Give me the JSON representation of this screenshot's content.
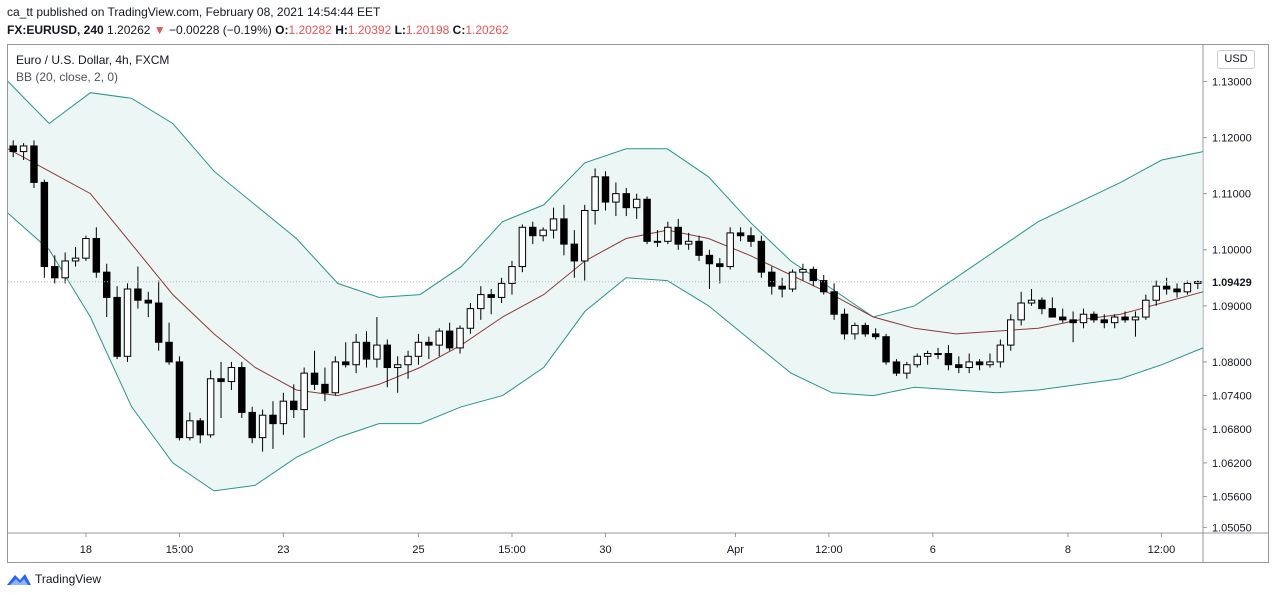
{
  "header": {
    "published": "ca_tt published on TradingView.com, February 08, 2021 14:54:44 EET",
    "symbol": "FX:EURUSD, 240",
    "price": "1.20262",
    "change": "−0.00228 (−0.19%)",
    "o_label": "O:",
    "o_value": "1.20282",
    "h_label": "H:",
    "h_value": "1.20392",
    "l_label": "L:",
    "l_value": "1.20198",
    "c_label": "C:",
    "c_value": "1.20262"
  },
  "legend": {
    "series_title": "Euro / U.S. Dollar, 4h, FXCM",
    "indicator": "BB (20, close, 2, 0)"
  },
  "currency_button": "USD",
  "branding": "TradingView",
  "colors": {
    "up": "#ffffff",
    "down": "#000000",
    "outline": "#000000",
    "band": "#26958c",
    "basis": "#8b3a3a",
    "fill": "#e0f2ef",
    "grid": "#9598a1"
  },
  "chart_data": {
    "type": "candlestick",
    "title": "Euro / U.S. Dollar, 4h, FXCM",
    "indicator": "Bollinger Bands (20, close, 2, 0)",
    "ylim": [
      1.0495,
      1.1365
    ],
    "y_ticks": [
      "1.13000",
      "1.12000",
      "1.11000",
      "1.10000",
      "1.09000",
      "1.08000",
      "1.07400",
      "1.06800",
      "1.06200",
      "1.05600",
      "1.05050"
    ],
    "last_price_label": "1.09429",
    "last_price": 1.09429,
    "x_tick_labels": [
      {
        "label": "18",
        "bar": 7.5
      },
      {
        "label": "15:00",
        "bar": 16.5
      },
      {
        "label": "23",
        "bar": 26.5
      },
      {
        "label": "25",
        "bar": 39.5
      },
      {
        "label": "15:00",
        "bar": 48.5
      },
      {
        "label": "30",
        "bar": 57.5
      },
      {
        "label": "Apr",
        "bar": 70
      },
      {
        "label": "12:00",
        "bar": 79
      },
      {
        "label": "6",
        "bar": 89
      },
      {
        "label": "8",
        "bar": 102
      },
      {
        "label": "12:00",
        "bar": 111
      }
    ],
    "candles": [
      {
        "o": 1.1185,
        "h": 1.1195,
        "l": 1.1165,
        "c": 1.1175
      },
      {
        "o": 1.1175,
        "h": 1.119,
        "l": 1.116,
        "c": 1.1185
      },
      {
        "o": 1.1185,
        "h": 1.1195,
        "l": 1.111,
        "c": 1.112
      },
      {
        "o": 1.112,
        "h": 1.1125,
        "l": 1.095,
        "c": 1.097
      },
      {
        "o": 1.097,
        "h": 1.099,
        "l": 1.094,
        "c": 1.095
      },
      {
        "o": 1.095,
        "h": 1.0995,
        "l": 1.094,
        "c": 1.098
      },
      {
        "o": 1.098,
        "h": 1.1005,
        "l": 1.097,
        "c": 1.0985
      },
      {
        "o": 1.0985,
        "h": 1.1025,
        "l": 1.098,
        "c": 1.102
      },
      {
        "o": 1.102,
        "h": 1.104,
        "l": 1.095,
        "c": 1.096
      },
      {
        "o": 1.096,
        "h": 1.0975,
        "l": 1.088,
        "c": 1.0915
      },
      {
        "o": 1.0915,
        "h": 1.0935,
        "l": 1.0805,
        "c": 1.081
      },
      {
        "o": 1.081,
        "h": 1.094,
        "l": 1.08,
        "c": 1.093
      },
      {
        "o": 1.093,
        "h": 1.097,
        "l": 1.0895,
        "c": 1.091
      },
      {
        "o": 1.091,
        "h": 1.0925,
        "l": 1.088,
        "c": 1.0905
      },
      {
        "o": 1.0905,
        "h": 1.0945,
        "l": 1.082,
        "c": 1.0835
      },
      {
        "o": 1.0835,
        "h": 1.087,
        "l": 1.0795,
        "c": 1.08
      },
      {
        "o": 1.08,
        "h": 1.081,
        "l": 1.066,
        "c": 1.0665
      },
      {
        "o": 1.0665,
        "h": 1.071,
        "l": 1.066,
        "c": 1.0695
      },
      {
        "o": 1.0695,
        "h": 1.07,
        "l": 1.0655,
        "c": 1.067
      },
      {
        "o": 1.067,
        "h": 1.0785,
        "l": 1.0665,
        "c": 1.077
      },
      {
        "o": 1.077,
        "h": 1.08,
        "l": 1.07,
        "c": 1.0765
      },
      {
        "o": 1.0765,
        "h": 1.08,
        "l": 1.075,
        "c": 1.079
      },
      {
        "o": 1.079,
        "h": 1.08,
        "l": 1.07,
        "c": 1.071
      },
      {
        "o": 1.071,
        "h": 1.072,
        "l": 1.0655,
        "c": 1.0665
      },
      {
        "o": 1.0665,
        "h": 1.0715,
        "l": 1.064,
        "c": 1.0705
      },
      {
        "o": 1.0705,
        "h": 1.073,
        "l": 1.0645,
        "c": 1.069
      },
      {
        "o": 1.069,
        "h": 1.0745,
        "l": 1.067,
        "c": 1.073
      },
      {
        "o": 1.073,
        "h": 1.076,
        "l": 1.07,
        "c": 1.0715
      },
      {
        "o": 1.0715,
        "h": 1.079,
        "l": 1.0665,
        "c": 1.078
      },
      {
        "o": 1.078,
        "h": 1.082,
        "l": 1.075,
        "c": 1.076
      },
      {
        "o": 1.076,
        "h": 1.079,
        "l": 1.073,
        "c": 1.0745
      },
      {
        "o": 1.0745,
        "h": 1.081,
        "l": 1.074,
        "c": 1.08
      },
      {
        "o": 1.08,
        "h": 1.0835,
        "l": 1.079,
        "c": 1.0795
      },
      {
        "o": 1.0795,
        "h": 1.085,
        "l": 1.078,
        "c": 1.0835
      },
      {
        "o": 1.0835,
        "h": 1.0855,
        "l": 1.079,
        "c": 1.0805
      },
      {
        "o": 1.0805,
        "h": 1.088,
        "l": 1.079,
        "c": 1.083
      },
      {
        "o": 1.083,
        "h": 1.084,
        "l": 1.0755,
        "c": 1.079
      },
      {
        "o": 1.079,
        "h": 1.081,
        "l": 1.0745,
        "c": 1.0795
      },
      {
        "o": 1.0795,
        "h": 1.082,
        "l": 1.077,
        "c": 1.081
      },
      {
        "o": 1.081,
        "h": 1.085,
        "l": 1.0795,
        "c": 1.0835
      },
      {
        "o": 1.0835,
        "h": 1.0845,
        "l": 1.0805,
        "c": 1.083
      },
      {
        "o": 1.083,
        "h": 1.086,
        "l": 1.081,
        "c": 1.0855
      },
      {
        "o": 1.0855,
        "h": 1.087,
        "l": 1.082,
        "c": 1.0825
      },
      {
        "o": 1.0825,
        "h": 1.0865,
        "l": 1.0815,
        "c": 1.086
      },
      {
        "o": 1.086,
        "h": 1.0905,
        "l": 1.085,
        "c": 1.0895
      },
      {
        "o": 1.0895,
        "h": 1.0935,
        "l": 1.0875,
        "c": 1.092
      },
      {
        "o": 1.092,
        "h": 1.093,
        "l": 1.0885,
        "c": 1.0915
      },
      {
        "o": 1.0915,
        "h": 1.095,
        "l": 1.0905,
        "c": 1.094
      },
      {
        "o": 1.094,
        "h": 1.098,
        "l": 1.092,
        "c": 1.097
      },
      {
        "o": 1.097,
        "h": 1.1045,
        "l": 1.096,
        "c": 1.104
      },
      {
        "o": 1.104,
        "h": 1.105,
        "l": 1.101,
        "c": 1.1025
      },
      {
        "o": 1.1025,
        "h": 1.104,
        "l": 1.1015,
        "c": 1.1035
      },
      {
        "o": 1.1035,
        "h": 1.1075,
        "l": 1.102,
        "c": 1.1055
      },
      {
        "o": 1.1055,
        "h": 1.108,
        "l": 1.099,
        "c": 1.101
      },
      {
        "o": 1.101,
        "h": 1.1035,
        "l": 1.095,
        "c": 1.098
      },
      {
        "o": 1.098,
        "h": 1.108,
        "l": 1.0945,
        "c": 1.107
      },
      {
        "o": 1.107,
        "h": 1.1145,
        "l": 1.1045,
        "c": 1.113
      },
      {
        "o": 1.113,
        "h": 1.114,
        "l": 1.107,
        "c": 1.1085
      },
      {
        "o": 1.1085,
        "h": 1.112,
        "l": 1.106,
        "c": 1.11
      },
      {
        "o": 1.11,
        "h": 1.111,
        "l": 1.106,
        "c": 1.1075
      },
      {
        "o": 1.1075,
        "h": 1.11,
        "l": 1.1055,
        "c": 1.109
      },
      {
        "o": 1.109,
        "h": 1.1095,
        "l": 1.101,
        "c": 1.1015
      },
      {
        "o": 1.1015,
        "h": 1.1035,
        "l": 1.1005,
        "c": 1.1015
      },
      {
        "o": 1.1015,
        "h": 1.105,
        "l": 1.101,
        "c": 1.104
      },
      {
        "o": 1.104,
        "h": 1.1055,
        "l": 1.1,
        "c": 1.101
      },
      {
        "o": 1.101,
        "h": 1.103,
        "l": 1.1,
        "c": 1.1015
      },
      {
        "o": 1.1015,
        "h": 1.1025,
        "l": 1.098,
        "c": 1.099
      },
      {
        "o": 1.099,
        "h": 1.1,
        "l": 1.093,
        "c": 1.0975
      },
      {
        "o": 1.0975,
        "h": 1.0985,
        "l": 1.094,
        "c": 1.097
      },
      {
        "o": 1.097,
        "h": 1.104,
        "l": 1.0965,
        "c": 1.103
      },
      {
        "o": 1.103,
        "h": 1.104,
        "l": 1.1015,
        "c": 1.1025
      },
      {
        "o": 1.1025,
        "h": 1.104,
        "l": 1.1005,
        "c": 1.1015
      },
      {
        "o": 1.1015,
        "h": 1.1025,
        "l": 1.095,
        "c": 1.096
      },
      {
        "o": 1.096,
        "h": 1.097,
        "l": 1.092,
        "c": 1.0935
      },
      {
        "o": 1.0935,
        "h": 1.095,
        "l": 1.0915,
        "c": 1.093
      },
      {
        "o": 1.093,
        "h": 1.0965,
        "l": 1.0925,
        "c": 1.096
      },
      {
        "o": 1.096,
        "h": 1.0975,
        "l": 1.0945,
        "c": 1.0965
      },
      {
        "o": 1.0965,
        "h": 1.097,
        "l": 1.0935,
        "c": 1.0945
      },
      {
        "o": 1.0945,
        "h": 1.0955,
        "l": 1.092,
        "c": 1.0925
      },
      {
        "o": 1.0925,
        "h": 1.094,
        "l": 1.0875,
        "c": 1.0885
      },
      {
        "o": 1.0885,
        "h": 1.0895,
        "l": 1.084,
        "c": 1.085
      },
      {
        "o": 1.085,
        "h": 1.087,
        "l": 1.084,
        "c": 1.0865
      },
      {
        "o": 1.0865,
        "h": 1.087,
        "l": 1.0845,
        "c": 1.085
      },
      {
        "o": 1.085,
        "h": 1.086,
        "l": 1.084,
        "c": 1.0845
      },
      {
        "o": 1.0845,
        "h": 1.085,
        "l": 1.0795,
        "c": 1.08
      },
      {
        "o": 1.08,
        "h": 1.0805,
        "l": 1.0775,
        "c": 1.078
      },
      {
        "o": 1.078,
        "h": 1.08,
        "l": 1.077,
        "c": 1.0795
      },
      {
        "o": 1.0795,
        "h": 1.0815,
        "l": 1.079,
        "c": 1.081
      },
      {
        "o": 1.081,
        "h": 1.082,
        "l": 1.0795,
        "c": 1.0815
      },
      {
        "o": 1.0815,
        "h": 1.0825,
        "l": 1.0805,
        "c": 1.0815
      },
      {
        "o": 1.0815,
        "h": 1.083,
        "l": 1.0785,
        "c": 1.0795
      },
      {
        "o": 1.0795,
        "h": 1.081,
        "l": 1.078,
        "c": 1.079
      },
      {
        "o": 1.079,
        "h": 1.0815,
        "l": 1.078,
        "c": 1.08
      },
      {
        "o": 1.08,
        "h": 1.0805,
        "l": 1.0785,
        "c": 1.0795
      },
      {
        "o": 1.0795,
        "h": 1.0815,
        "l": 1.079,
        "c": 1.08
      },
      {
        "o": 1.08,
        "h": 1.084,
        "l": 1.079,
        "c": 1.083
      },
      {
        "o": 1.083,
        "h": 1.0885,
        "l": 1.082,
        "c": 1.0875
      },
      {
        "o": 1.0875,
        "h": 1.0925,
        "l": 1.0865,
        "c": 1.0905
      },
      {
        "o": 1.0905,
        "h": 1.093,
        "l": 1.09,
        "c": 1.091
      },
      {
        "o": 1.091,
        "h": 1.0915,
        "l": 1.0885,
        "c": 1.0895
      },
      {
        "o": 1.0895,
        "h": 1.0915,
        "l": 1.088,
        "c": 1.088
      },
      {
        "o": 1.088,
        "h": 1.0895,
        "l": 1.087,
        "c": 1.0875
      },
      {
        "o": 1.0875,
        "h": 1.089,
        "l": 1.0835,
        "c": 1.087
      },
      {
        "o": 1.087,
        "h": 1.0895,
        "l": 1.086,
        "c": 1.0885
      },
      {
        "o": 1.0885,
        "h": 1.089,
        "l": 1.087,
        "c": 1.0875
      },
      {
        "o": 1.0875,
        "h": 1.0885,
        "l": 1.086,
        "c": 1.087
      },
      {
        "o": 1.087,
        "h": 1.0885,
        "l": 1.086,
        "c": 1.088
      },
      {
        "o": 1.088,
        "h": 1.089,
        "l": 1.087,
        "c": 1.0875
      },
      {
        "o": 1.0875,
        "h": 1.089,
        "l": 1.0845,
        "c": 1.088
      },
      {
        "o": 1.088,
        "h": 1.092,
        "l": 1.0875,
        "c": 1.091
      },
      {
        "o": 1.091,
        "h": 1.0945,
        "l": 1.09,
        "c": 1.0935
      },
      {
        "o": 1.0935,
        "h": 1.095,
        "l": 1.092,
        "c": 1.093
      },
      {
        "o": 1.093,
        "h": 1.094,
        "l": 1.0915,
        "c": 1.0925
      },
      {
        "o": 1.0925,
        "h": 1.0945,
        "l": 1.092,
        "c": 1.094
      },
      {
        "o": 1.094,
        "h": 1.0945,
        "l": 1.093,
        "c": 1.0943
      }
    ],
    "bb_upper": [
      1.13,
      1.1225,
      1.128,
      1.127,
      1.1225,
      1.114,
      1.108,
      1.102,
      1.094,
      1.0915,
      1.092,
      1.097,
      1.105,
      1.108,
      1.1155,
      1.118,
      1.118,
      1.113,
      1.105,
      1.098,
      1.093,
      1.088,
      1.09,
      1.095,
      1.1,
      1.105,
      1.1085,
      1.112,
      1.116,
      1.1175
    ],
    "bb_basis": [
      1.118,
      1.114,
      1.11,
      1.101,
      1.092,
      1.085,
      1.079,
      1.075,
      1.074,
      1.076,
      1.079,
      1.083,
      1.088,
      1.092,
      1.098,
      1.102,
      1.1035,
      1.102,
      1.099,
      1.0955,
      1.092,
      1.088,
      1.086,
      1.085,
      1.0855,
      1.086,
      1.0875,
      1.0885,
      1.0905,
      1.0925
    ],
    "bb_lower": [
      1.1065,
      1.1,
      1.088,
      1.072,
      1.062,
      1.057,
      1.058,
      1.063,
      1.0665,
      1.069,
      1.069,
      1.072,
      1.074,
      1.079,
      1.089,
      1.095,
      1.0945,
      1.09,
      1.084,
      1.078,
      1.0745,
      1.074,
      1.0755,
      1.075,
      1.0745,
      1.075,
      1.076,
      1.077,
      1.0795,
      1.0825
    ]
  }
}
